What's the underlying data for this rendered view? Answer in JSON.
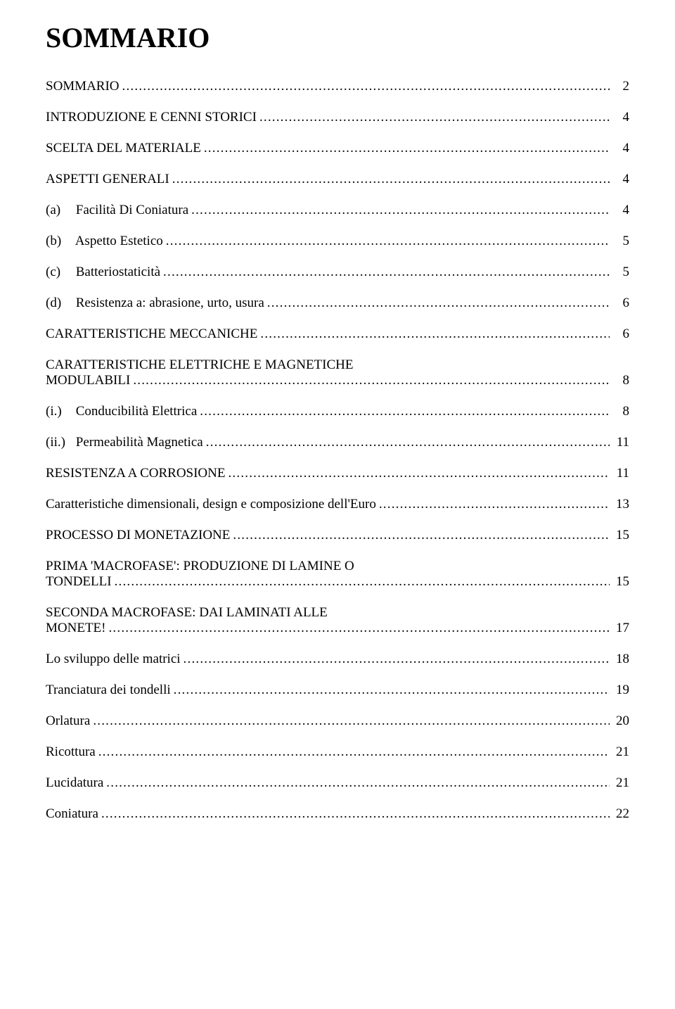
{
  "title": "SOMMARIO",
  "entries": [
    {
      "kind": "single",
      "label": "SOMMARIO",
      "page": "2"
    },
    {
      "kind": "single",
      "label": "INTRODUZIONE E CENNI STORICI",
      "page": "4"
    },
    {
      "kind": "single",
      "label": "SCELTA DEL MATERIALE",
      "page": "4"
    },
    {
      "kind": "single",
      "label": "ASPETTI GENERALI",
      "page": "4"
    },
    {
      "kind": "sub",
      "marker": "(a)",
      "label": "Facilità Di Coniatura",
      "page": "4"
    },
    {
      "kind": "sub",
      "marker": "(b)",
      "label": "Aspetto Estetico",
      "page": "5"
    },
    {
      "kind": "sub",
      "marker": "(c)",
      "label": "Batteriostaticità",
      "page": "5"
    },
    {
      "kind": "sub",
      "marker": "(d)",
      "label": "Resistenza a: abrasione, urto, usura",
      "page": "6"
    },
    {
      "kind": "single",
      "label": "CARATTERISTICHE MECCANICHE",
      "page": "6"
    },
    {
      "kind": "twoline",
      "line1": "CARATTERISTICHE ELETTRICHE E MAGNETICHE",
      "label": "MODULABILI",
      "page": "8"
    },
    {
      "kind": "sub",
      "marker": "(i.)",
      "label": "Conducibilità Elettrica",
      "page": "8"
    },
    {
      "kind": "sub",
      "marker": "(ii.)",
      "label": "Permeabilità Magnetica",
      "page": "11"
    },
    {
      "kind": "single",
      "label": "RESISTENZA A CORROSIONE",
      "page": "11"
    },
    {
      "kind": "single",
      "label": "Caratteristiche dimensionali, design e composizione dell'Euro",
      "page": "13"
    },
    {
      "kind": "single",
      "label": "PROCESSO DI MONETAZIONE",
      "page": "15"
    },
    {
      "kind": "twoline",
      "line1": "PRIMA 'MACROFASE': PRODUZIONE DI LAMINE O",
      "label": "TONDELLI",
      "page": "15"
    },
    {
      "kind": "twoline",
      "line1": "SECONDA MACROFASE: DAI LAMINATI ALLE",
      "label": "MONETE!",
      "page": "17"
    },
    {
      "kind": "single",
      "label": "Lo sviluppo delle matrici",
      "page": "18"
    },
    {
      "kind": "single",
      "label": "Tranciatura dei tondelli",
      "page": "19"
    },
    {
      "kind": "single",
      "label": "Orlatura",
      "page": "20"
    },
    {
      "kind": "single",
      "label": "Ricottura",
      "page": "21"
    },
    {
      "kind": "single",
      "label": "Lucidatura",
      "page": "21"
    },
    {
      "kind": "single",
      "label": "Coniatura",
      "page": "22"
    }
  ]
}
